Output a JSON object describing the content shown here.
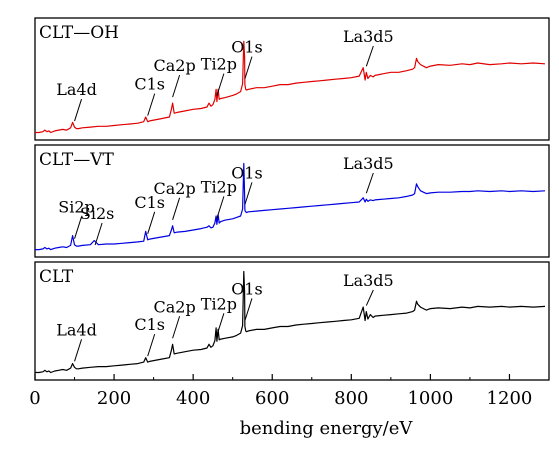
{
  "chart_data": {
    "type": "line",
    "xlabel": "bending energy/eV",
    "xlim": [
      0,
      1300
    ],
    "xticks": [
      0,
      200,
      400,
      600,
      800,
      1000,
      1200
    ],
    "grid": false,
    "panels": [
      {
        "name": "CLT—OH",
        "color": "#e00000",
        "x": [
          0,
          10,
          20,
          25,
          30,
          35,
          40,
          50,
          60,
          70,
          80,
          90,
          95,
          100,
          105,
          110,
          120,
          140,
          160,
          180,
          200,
          220,
          240,
          260,
          275,
          280,
          285,
          290,
          300,
          320,
          340,
          345,
          348,
          352,
          360,
          380,
          400,
          420,
          435,
          440,
          445,
          450,
          455,
          458,
          460,
          463,
          466,
          470,
          480,
          500,
          510,
          520,
          525,
          528,
          530,
          531,
          533,
          535,
          540,
          560,
          580,
          600,
          620,
          640,
          660,
          680,
          700,
          720,
          740,
          760,
          780,
          800,
          820,
          830,
          835,
          838,
          842,
          848,
          855,
          860,
          880,
          900,
          920,
          940,
          955,
          960,
          965,
          968,
          975,
          990,
          1000,
          1020,
          1050,
          1080,
          1100,
          1120,
          1150,
          1180,
          1200,
          1230,
          1260,
          1290
        ],
        "y": [
          2,
          2,
          3,
          5,
          3,
          4,
          2,
          4,
          5,
          6,
          5,
          8,
          15,
          9,
          7,
          7,
          8,
          9,
          10,
          10,
          11,
          12,
          13,
          14,
          16,
          22,
          16,
          17,
          18,
          20,
          22,
          32,
          40,
          27,
          28,
          30,
          32,
          33,
          35,
          40,
          36,
          38,
          45,
          58,
          42,
          58,
          45,
          46,
          47,
          50,
          52,
          55,
          65,
          120,
          100,
          64,
          58,
          57,
          58,
          60,
          60,
          62,
          64,
          64,
          66,
          67,
          68,
          69,
          70,
          71,
          72,
          73,
          75,
          86,
          70,
          80,
          72,
          76,
          74,
          76,
          78,
          80,
          80,
          82,
          84,
          86,
          98,
          94,
          90,
          86,
          88,
          90,
          89,
          91,
          90,
          92,
          90,
          91,
          92,
          91,
          92,
          91
        ]
      },
      {
        "name": "CLT—VT",
        "color": "#0000e0",
        "x": [
          0,
          10,
          20,
          25,
          30,
          35,
          40,
          50,
          60,
          70,
          80,
          90,
          95,
          100,
          105,
          110,
          120,
          140,
          150,
          160,
          180,
          200,
          220,
          240,
          260,
          275,
          280,
          285,
          290,
          300,
          320,
          340,
          345,
          348,
          352,
          360,
          380,
          400,
          420,
          435,
          440,
          445,
          450,
          455,
          458,
          460,
          463,
          466,
          470,
          480,
          500,
          510,
          520,
          525,
          528,
          530,
          531,
          533,
          535,
          540,
          560,
          580,
          600,
          620,
          640,
          660,
          680,
          700,
          720,
          740,
          760,
          780,
          800,
          820,
          830,
          835,
          838,
          842,
          848,
          855,
          860,
          880,
          900,
          920,
          940,
          955,
          960,
          965,
          968,
          975,
          990,
          1000,
          1020,
          1050,
          1080,
          1100,
          1120,
          1150,
          1180,
          1200,
          1230,
          1260,
          1290
        ],
        "y": [
          2,
          2,
          3,
          5,
          3,
          4,
          2,
          4,
          5,
          6,
          5,
          8,
          22,
          9,
          7,
          7,
          8,
          9,
          15,
          9,
          10,
          10,
          11,
          12,
          13,
          14,
          28,
          16,
          17,
          18,
          20,
          22,
          30,
          36,
          26,
          27,
          28,
          30,
          32,
          34,
          36,
          33,
          34,
          40,
          50,
          38,
          52,
          40,
          42,
          44,
          46,
          48,
          50,
          60,
          125,
          80,
          58,
          56,
          55,
          56,
          57,
          58,
          59,
          60,
          61,
          62,
          63,
          64,
          65,
          66,
          67,
          68,
          69,
          70,
          76,
          70,
          74,
          71,
          73,
          72,
          73,
          74,
          75,
          76,
          78,
          80,
          82,
          96,
          92,
          86,
          82,
          83,
          84,
          84,
          85,
          85,
          86,
          85,
          86,
          85,
          86,
          85,
          86
        ]
      },
      {
        "name": "CLT",
        "color": "#000000",
        "x": [
          0,
          10,
          20,
          25,
          30,
          35,
          40,
          50,
          60,
          70,
          80,
          90,
          95,
          100,
          105,
          110,
          120,
          140,
          160,
          180,
          200,
          220,
          240,
          260,
          275,
          280,
          285,
          290,
          300,
          320,
          340,
          345,
          348,
          352,
          360,
          380,
          400,
          420,
          435,
          440,
          445,
          450,
          455,
          458,
          460,
          463,
          466,
          470,
          480,
          500,
          510,
          520,
          525,
          528,
          530,
          531,
          533,
          535,
          540,
          560,
          580,
          600,
          620,
          640,
          660,
          680,
          700,
          720,
          740,
          760,
          780,
          800,
          820,
          830,
          835,
          838,
          842,
          848,
          855,
          860,
          880,
          900,
          920,
          940,
          955,
          960,
          965,
          968,
          975,
          990,
          1000,
          1020,
          1050,
          1080,
          1100,
          1120,
          1150,
          1180,
          1200,
          1230,
          1260,
          1290
        ],
        "y": [
          2,
          2,
          3,
          5,
          3,
          4,
          2,
          4,
          5,
          6,
          5,
          8,
          14,
          9,
          7,
          7,
          8,
          9,
          10,
          10,
          11,
          12,
          13,
          14,
          16,
          22,
          16,
          17,
          18,
          20,
          22,
          32,
          40,
          27,
          28,
          30,
          32,
          33,
          35,
          40,
          36,
          38,
          45,
          62,
          44,
          60,
          46,
          47,
          48,
          50,
          52,
          55,
          65,
          138,
          110,
          64,
          58,
          57,
          58,
          60,
          60,
          62,
          64,
          64,
          66,
          67,
          68,
          69,
          70,
          71,
          72,
          73,
          75,
          90,
          72,
          84,
          74,
          80,
          76,
          78,
          79,
          80,
          81,
          82,
          84,
          86,
          98,
          94,
          90,
          86,
          88,
          89,
          88,
          90,
          89,
          91,
          90,
          91,
          90,
          91,
          90,
          91
        ]
      }
    ],
    "annotations": [
      {
        "panel": 0,
        "label": "La4d",
        "x": 100
      },
      {
        "panel": 0,
        "label": "C1s",
        "x": 285
      },
      {
        "panel": 0,
        "label": "Ca2p",
        "x": 348
      },
      {
        "panel": 0,
        "label": "Ti2p",
        "x": 460
      },
      {
        "panel": 0,
        "label": "O1s",
        "x": 531
      },
      {
        "panel": 0,
        "label": "La3d5",
        "x": 838
      },
      {
        "panel": 1,
        "label": "Si2p",
        "x": 100
      },
      {
        "panel": 1,
        "label": "Si2s",
        "x": 152
      },
      {
        "panel": 1,
        "label": "C1s",
        "x": 285
      },
      {
        "panel": 1,
        "label": "Ca2p",
        "x": 348
      },
      {
        "panel": 1,
        "label": "Ti2p",
        "x": 460
      },
      {
        "panel": 1,
        "label": "O1s",
        "x": 531
      },
      {
        "panel": 1,
        "label": "La3d5",
        "x": 838
      },
      {
        "panel": 2,
        "label": "La4d",
        "x": 100
      },
      {
        "panel": 2,
        "label": "C1s",
        "x": 285
      },
      {
        "panel": 2,
        "label": "Ca2p",
        "x": 348
      },
      {
        "panel": 2,
        "label": "Ti2p",
        "x": 460
      },
      {
        "panel": 2,
        "label": "O1s",
        "x": 531
      },
      {
        "panel": 2,
        "label": "La3d5",
        "x": 838
      }
    ]
  }
}
